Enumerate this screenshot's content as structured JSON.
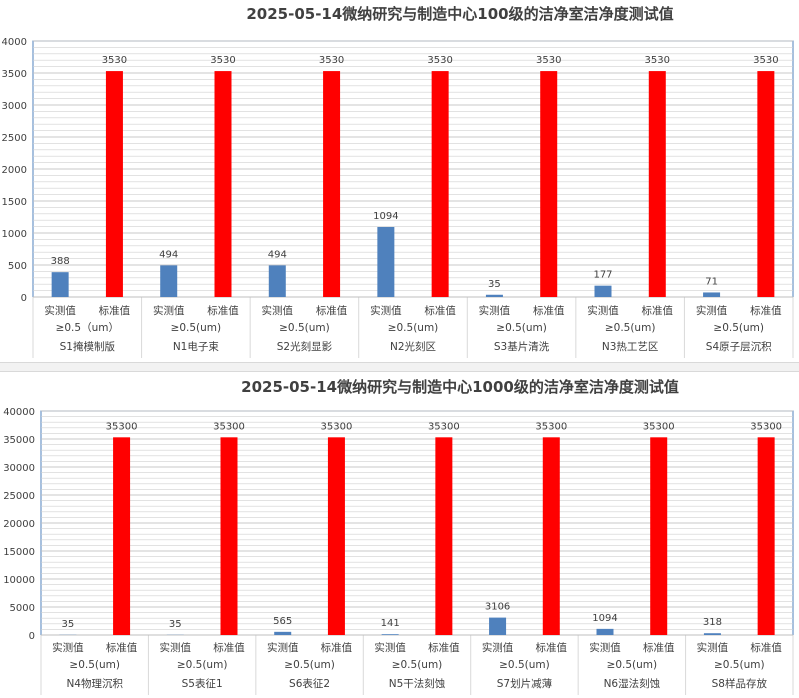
{
  "colors": {
    "actual": "#4f81bd",
    "standard": "#ff0000",
    "grid": "#d0d0d0",
    "axis_border": "#4f81bd"
  },
  "chart_data": [
    {
      "type": "bar",
      "title": "2025-05-14微纳研究与制造中心100级的洁净室洁净度测试值",
      "ylim": [
        0,
        4000
      ],
      "yticks": [
        0,
        500,
        1000,
        1500,
        2000,
        2500,
        3000,
        3500,
        4000
      ],
      "grid": true,
      "legend": "none",
      "series_labels": [
        "实测值",
        "标准值"
      ],
      "groups": [
        {
          "size": "≥0.5（um）",
          "name": "S1掩模制版",
          "values": [
            388,
            3530
          ]
        },
        {
          "size": "≥0.5(um)",
          "name": "N1电子束",
          "values": [
            494,
            3530
          ]
        },
        {
          "size": "≥0.5(um)",
          "name": "S2光刻显影",
          "values": [
            494,
            3530
          ]
        },
        {
          "size": "≥0.5(um)",
          "name": "N2光刻区",
          "values": [
            1094,
            3530
          ]
        },
        {
          "size": "≥0.5(um)",
          "name": "S3基片清洗",
          "values": [
            35,
            3530
          ]
        },
        {
          "size": "≥0.5(um)",
          "name": "N3热工艺区",
          "values": [
            177,
            3530
          ]
        },
        {
          "size": "≥0.5(um)",
          "name": "S4原子层沉积",
          "values": [
            71,
            3530
          ]
        }
      ]
    },
    {
      "type": "bar",
      "title": "2025-05-14微纳研究与制造中心1000级的洁净室洁净度测试值",
      "ylim": [
        0,
        40000
      ],
      "yticks": [
        0,
        5000,
        10000,
        15000,
        20000,
        25000,
        30000,
        35000,
        40000
      ],
      "grid": true,
      "legend": "none",
      "series_labels": [
        "实测值",
        "标准值"
      ],
      "groups": [
        {
          "size": "≥0.5(um)",
          "name": "N4物理沉积",
          "values": [
            35,
            35300
          ]
        },
        {
          "size": "≥0.5(um)",
          "name": "S5表征1",
          "values": [
            35,
            35300
          ]
        },
        {
          "size": "≥0.5(um)",
          "name": "S6表征2",
          "values": [
            565,
            35300
          ]
        },
        {
          "size": "≥0.5(um)",
          "name": "N5干法刻蚀",
          "values": [
            141,
            35300
          ]
        },
        {
          "size": "≥0.5(um)",
          "name": "S7划片减薄",
          "values": [
            3106,
            35300
          ]
        },
        {
          "size": "≥0.5(um)",
          "name": "N6湿法刻蚀",
          "values": [
            1094,
            35300
          ]
        },
        {
          "size": "≥0.5(um)",
          "name": "S8样品存放",
          "values": [
            318,
            35300
          ]
        }
      ]
    }
  ]
}
